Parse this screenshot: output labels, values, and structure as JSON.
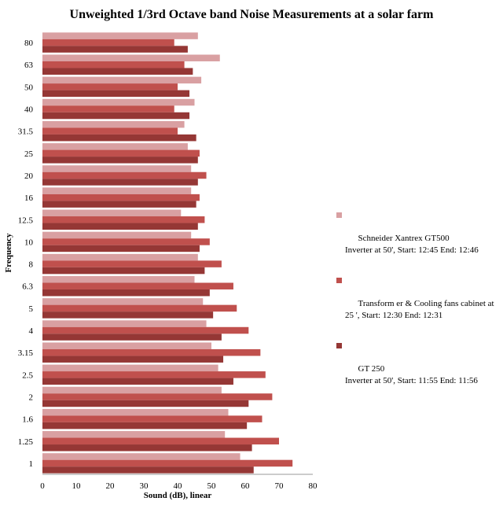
{
  "chart_data": {
    "type": "bar",
    "orientation": "horizontal",
    "title": "Unweighted 1/3rd Octave band Noise Measurements at a solar farm",
    "xlabel": "Sound (dB), linear",
    "ylabel": "Frequency",
    "xlim": [
      0,
      80
    ],
    "xticks": [
      "0",
      "10",
      "20",
      "30",
      "40",
      "50",
      "60",
      "70",
      "80"
    ],
    "categories": [
      "1",
      "1.25",
      "1.6",
      "2",
      "2.5",
      "3.15",
      "4",
      "5",
      "6.3",
      "8",
      "10",
      "12.5",
      "16",
      "20",
      "25",
      "31.5",
      "40",
      "50",
      "63",
      "80"
    ],
    "series": [
      {
        "name": "Schneider Xantrex GT500\nInverter at 50', Start: 12:45 End: 12:46",
        "color": "#d9a0a2",
        "values": [
          58.5,
          54.0,
          55.0,
          53.0,
          52.0,
          50.0,
          48.5,
          47.5,
          45.0,
          46.0,
          44.0,
          41.0,
          44.0,
          44.0,
          43.0,
          42.0,
          45.0,
          47.0,
          52.5,
          46.0
        ]
      },
      {
        "name": "Transform er & Cooling fans cabinet at\n25 ', Start: 12:30 End: 12:31",
        "color": "#c0504d",
        "values": [
          74.0,
          70.0,
          65.0,
          68.0,
          66.0,
          64.5,
          61.0,
          57.5,
          56.5,
          53.0,
          49.5,
          48.0,
          46.5,
          48.5,
          46.5,
          40.0,
          39.0,
          40.0,
          42.0,
          39.0
        ]
      },
      {
        "name": "GT 250\nInverter at 50', Start: 11:55 End: 11:56",
        "color": "#953735",
        "values": [
          62.5,
          62.0,
          60.5,
          61.0,
          56.5,
          53.5,
          53.0,
          50.5,
          49.5,
          48.0,
          46.5,
          46.0,
          45.5,
          46.0,
          46.0,
          45.5,
          43.5,
          43.5,
          44.5,
          43.0
        ]
      }
    ],
    "legend_position": "right",
    "grid": false
  }
}
